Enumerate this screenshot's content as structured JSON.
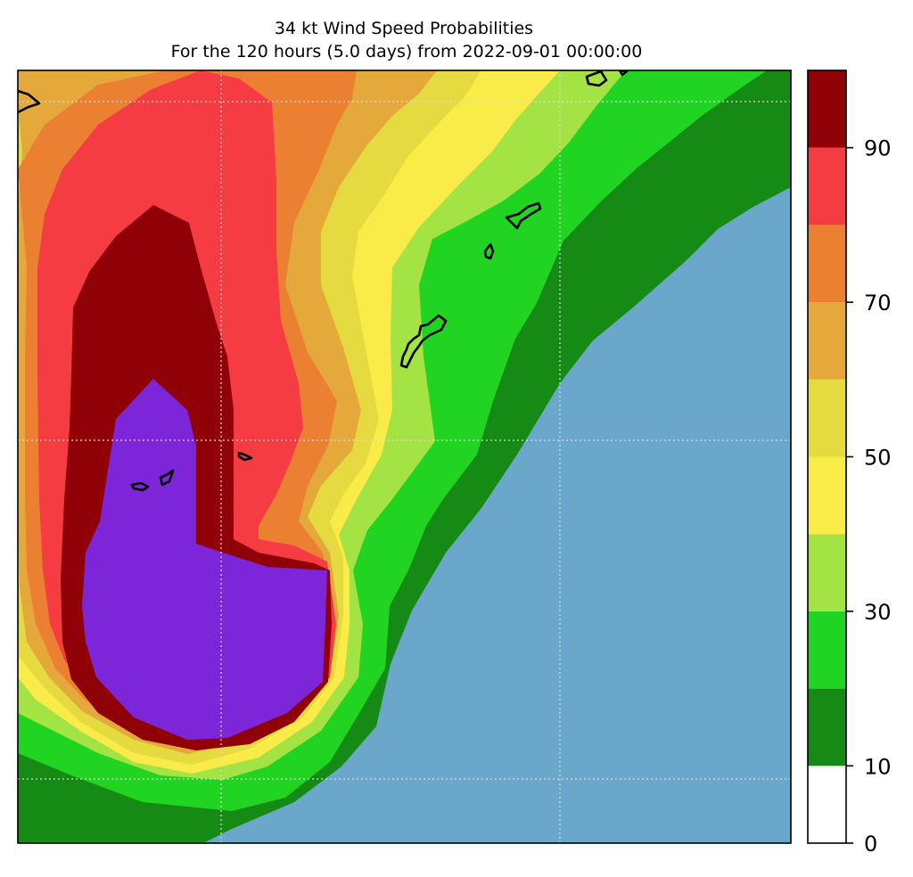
{
  "title": {
    "line1": "34 kt Wind Speed Probabilities",
    "line2": "For the 120 hours (5.0 days) from 2022-09-01 00:00:00"
  },
  "colorbar": {
    "levels": [
      0,
      10,
      20,
      30,
      40,
      50,
      60,
      70,
      80,
      90,
      100
    ],
    "colors": [
      "#ffffff",
      "#158a15",
      "#22d422",
      "#a3e344",
      "#f9eb48",
      "#e5da40",
      "#e5a83b",
      "#ec8032",
      "#f53c43",
      "#900007",
      "#7d25d8"
    ],
    "tick_labels": [
      "0",
      "10",
      "30",
      "50",
      "70",
      "90"
    ]
  },
  "map": {
    "ocean_color": "#6ba6cb",
    "coastline_color": "#000000",
    "gridlines": true,
    "islands": [
      "island-top-left-edge",
      "island-top-center",
      "island-northeast-chain",
      "island-north-small",
      "island-okinawa-like",
      "island-center-small",
      "island-west-a",
      "island-west-b"
    ]
  }
}
